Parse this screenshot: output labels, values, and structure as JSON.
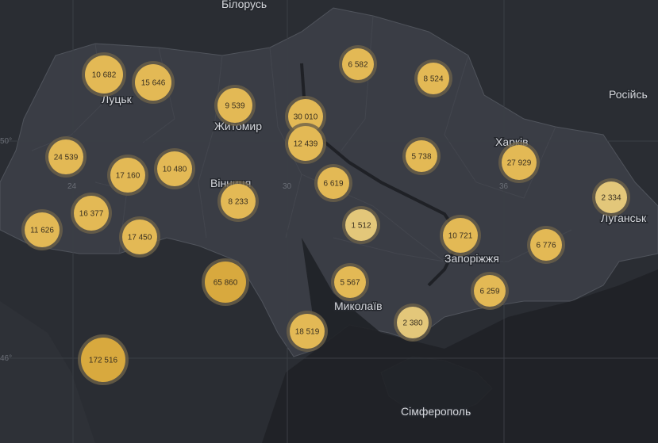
{
  "places": [
    {
      "label": "Білорусь"
    },
    {
      "label": "Луцьк"
    },
    {
      "label": "Житомир"
    },
    {
      "label": "Вінниця"
    },
    {
      "label": "Харків"
    },
    {
      "label": "Луганськ"
    },
    {
      "label": "Запоріжжя"
    },
    {
      "label": "Миколаїв"
    },
    {
      "label": "Сімферополь"
    },
    {
      "label": "Російсь"
    }
  ],
  "coordinates": [
    {
      "label": "50°"
    },
    {
      "label": "46°"
    },
    {
      "label": "24"
    },
    {
      "label": "30"
    },
    {
      "label": "36"
    }
  ],
  "clusters": [
    {
      "label": "10 682"
    },
    {
      "label": "15 646"
    },
    {
      "label": "9 539"
    },
    {
      "label": "30 010"
    },
    {
      "label": "12 439"
    },
    {
      "label": "6 582"
    },
    {
      "label": "8 524"
    },
    {
      "label": "24 539"
    },
    {
      "label": "17 160"
    },
    {
      "label": "10 480"
    },
    {
      "label": "6 619"
    },
    {
      "label": "5 738"
    },
    {
      "label": "27 929"
    },
    {
      "label": "2 334"
    },
    {
      "label": "16 377"
    },
    {
      "label": "8 233"
    },
    {
      "label": "11 626"
    },
    {
      "label": "17 450"
    },
    {
      "label": "1 512"
    },
    {
      "label": "10 721"
    },
    {
      "label": "6 776"
    },
    {
      "label": "65 860"
    },
    {
      "label": "5 567"
    },
    {
      "label": "6 259"
    },
    {
      "label": "18 519"
    },
    {
      "label": "2 380"
    },
    {
      "label": "172 516"
    }
  ]
}
